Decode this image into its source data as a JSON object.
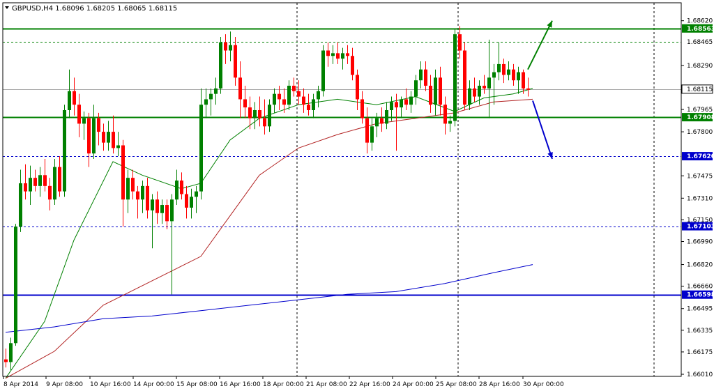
{
  "chart_data": {
    "type": "candlestick",
    "title": "GBPUSD,H4  1.68096 1.68205 1.68065 1.68115",
    "ylim": [
      1.6601,
      1.6867
    ],
    "y_ticks": [
      "1.68620",
      "1.68290",
      "1.67965",
      "1.67800",
      "1.67475",
      "1.67310",
      "1.67150",
      "1.66990",
      "1.66820",
      "1.66660",
      "1.66495",
      "1.66335",
      "1.66175",
      "1.66010"
    ],
    "x_ticks": [
      "8 Apr 2014",
      "9 Apr 08:00",
      "10 Apr 16:00",
      "14 Apr 00:00",
      "15 Apr 08:00",
      "16 Apr 16:00",
      "18 Apr 00:00",
      "21 Apr 08:00",
      "22 Apr 16:00",
      "24 Apr 00:00",
      "25 Apr 08:00",
      "28 Apr 16:00",
      "30 Apr 00:00"
    ],
    "horizontal_levels": [
      {
        "value": 1.68563,
        "label": "1.68563",
        "color": "#008000",
        "style": "solid",
        "highlight": true
      },
      {
        "value": 1.68465,
        "label": "1.68465",
        "color": "#008000",
        "style": "dashed",
        "highlight": false
      },
      {
        "value": 1.68115,
        "label": "1.68115",
        "color": "#000000",
        "style": "current",
        "highlight": false
      },
      {
        "value": 1.67908,
        "label": "1.67908",
        "color": "#008000",
        "style": "solid",
        "highlight": true
      },
      {
        "value": 1.6762,
        "label": "1.67620",
        "color": "#0000cc",
        "style": "dashed",
        "highlight": true
      },
      {
        "value": 1.67103,
        "label": "1.67103",
        "color": "#0000cc",
        "style": "dashed",
        "highlight": true
      },
      {
        "value": 1.66598,
        "label": "1.66598",
        "color": "#0000cc",
        "style": "solid",
        "highlight": true
      }
    ],
    "candles": [
      [
        1.6612,
        1.662,
        1.6606,
        1.661
      ],
      [
        1.661,
        1.6628,
        1.6604,
        1.6624
      ],
      [
        1.6624,
        1.6712,
        1.6622,
        1.671
      ],
      [
        1.671,
        1.6752,
        1.6706,
        1.6742
      ],
      [
        1.6742,
        1.6756,
        1.673,
        1.6736
      ],
      [
        1.6736,
        1.6755,
        1.6726,
        1.6746
      ],
      [
        1.6746,
        1.6752,
        1.6736,
        1.674
      ],
      [
        1.674,
        1.6754,
        1.6732,
        1.6748
      ],
      [
        1.6748,
        1.676,
        1.6736,
        1.674
      ],
      [
        1.674,
        1.6746,
        1.6722,
        1.673
      ],
      [
        1.673,
        1.676,
        1.6726,
        1.6754
      ],
      [
        1.6754,
        1.6762,
        1.6732,
        1.6736
      ],
      [
        1.6736,
        1.68,
        1.6732,
        1.6796
      ],
      [
        1.6796,
        1.6826,
        1.679,
        1.681
      ],
      [
        1.681,
        1.682,
        1.6792,
        1.68
      ],
      [
        1.68,
        1.6808,
        1.6776,
        1.6786
      ],
      [
        1.6786,
        1.6795,
        1.6774,
        1.679
      ],
      [
        1.679,
        1.6794,
        1.6754,
        1.6764
      ],
      [
        1.6764,
        1.68,
        1.676,
        1.679
      ],
      [
        1.679,
        1.6794,
        1.677,
        1.678
      ],
      [
        1.678,
        1.6786,
        1.6766,
        1.6772
      ],
      [
        1.6772,
        1.6788,
        1.6766,
        1.678
      ],
      [
        1.678,
        1.6792,
        1.6764,
        1.6768
      ],
      [
        1.6768,
        1.678,
        1.6762,
        1.677
      ],
      [
        1.677,
        1.6774,
        1.671,
        1.673
      ],
      [
        1.673,
        1.6752,
        1.672,
        1.6746
      ],
      [
        1.6746,
        1.6752,
        1.673,
        1.6736
      ],
      [
        1.6736,
        1.674,
        1.6716,
        1.673
      ],
      [
        1.673,
        1.6744,
        1.672,
        1.674
      ],
      [
        1.674,
        1.6746,
        1.6716,
        1.6722
      ],
      [
        1.6722,
        1.6734,
        1.6694,
        1.673
      ],
      [
        1.673,
        1.6736,
        1.6712,
        1.672
      ],
      [
        1.672,
        1.673,
        1.6712,
        1.6726
      ],
      [
        1.6726,
        1.673,
        1.6708,
        1.6714
      ],
      [
        1.6714,
        1.6734,
        1.666,
        1.673
      ],
      [
        1.673,
        1.6752,
        1.6726,
        1.6744
      ],
      [
        1.6744,
        1.675,
        1.673,
        1.6734
      ],
      [
        1.6734,
        1.674,
        1.6716,
        1.6724
      ],
      [
        1.6724,
        1.6738,
        1.6716,
        1.6732
      ],
      [
        1.6732,
        1.674,
        1.672,
        1.6736
      ],
      [
        1.6736,
        1.6812,
        1.673,
        1.68
      ],
      [
        1.68,
        1.6812,
        1.679,
        1.6804
      ],
      [
        1.6804,
        1.6812,
        1.6792,
        1.6808
      ],
      [
        1.6808,
        1.682,
        1.68,
        1.6812
      ],
      [
        1.6812,
        1.685,
        1.6808,
        1.6846
      ],
      [
        1.6846,
        1.6852,
        1.683,
        1.684
      ],
      [
        1.684,
        1.6854,
        1.6832,
        1.6844
      ],
      [
        1.6844,
        1.685,
        1.6814,
        1.682
      ],
      [
        1.682,
        1.6832,
        1.679,
        1.6804
      ],
      [
        1.6804,
        1.6814,
        1.679,
        1.6798
      ],
      [
        1.6798,
        1.6806,
        1.6782,
        1.679
      ],
      [
        1.679,
        1.6802,
        1.6782,
        1.6796
      ],
      [
        1.6796,
        1.6806,
        1.6784,
        1.679
      ],
      [
        1.679,
        1.6804,
        1.6778,
        1.6784
      ],
      [
        1.6784,
        1.6804,
        1.678,
        1.68
      ],
      [
        1.68,
        1.6812,
        1.6794,
        1.6808
      ],
      [
        1.6808,
        1.6814,
        1.6796,
        1.6804
      ],
      [
        1.6804,
        1.6812,
        1.6794,
        1.68
      ],
      [
        1.68,
        1.6818,
        1.6796,
        1.6814
      ],
      [
        1.6814,
        1.682,
        1.6806,
        1.681
      ],
      [
        1.681,
        1.6818,
        1.68,
        1.6806
      ],
      [
        1.6806,
        1.6812,
        1.6794,
        1.68
      ],
      [
        1.68,
        1.6808,
        1.6792,
        1.6796
      ],
      [
        1.6796,
        1.6808,
        1.679,
        1.6804
      ],
      [
        1.6804,
        1.6814,
        1.6798,
        1.681
      ],
      [
        1.681,
        1.6844,
        1.6806,
        1.684
      ],
      [
        1.684,
        1.6846,
        1.6828,
        1.6836
      ],
      [
        1.6836,
        1.6844,
        1.683,
        1.6838
      ],
      [
        1.6838,
        1.6846,
        1.683,
        1.6834
      ],
      [
        1.6834,
        1.6842,
        1.6826,
        1.6838
      ],
      [
        1.6838,
        1.6844,
        1.683,
        1.6836
      ],
      [
        1.6836,
        1.6842,
        1.6818,
        1.6822
      ],
      [
        1.6822,
        1.6826,
        1.6796,
        1.6804
      ],
      [
        1.6804,
        1.681,
        1.6786,
        1.679
      ],
      [
        1.679,
        1.6798,
        1.6764,
        1.6772
      ],
      [
        1.6772,
        1.679,
        1.6766,
        1.6784
      ],
      [
        1.6784,
        1.6794,
        1.6776,
        1.679
      ],
      [
        1.679,
        1.6798,
        1.678,
        1.6786
      ],
      [
        1.6786,
        1.6802,
        1.6782,
        1.6796
      ],
      [
        1.6796,
        1.6806,
        1.6788,
        1.6802
      ],
      [
        1.6802,
        1.6808,
        1.6766,
        1.6798
      ],
      [
        1.6798,
        1.6806,
        1.679,
        1.6804
      ],
      [
        1.6804,
        1.6812,
        1.6796,
        1.68
      ],
      [
        1.68,
        1.681,
        1.6794,
        1.6806
      ],
      [
        1.6806,
        1.6822,
        1.68,
        1.6818
      ],
      [
        1.6818,
        1.6832,
        1.6812,
        1.6826
      ],
      [
        1.6826,
        1.6832,
        1.681,
        1.6814
      ],
      [
        1.6814,
        1.6822,
        1.6794,
        1.68
      ],
      [
        1.68,
        1.6826,
        1.6792,
        1.682
      ],
      [
        1.682,
        1.6828,
        1.6792,
        1.68
      ],
      [
        1.68,
        1.6806,
        1.6778,
        1.6786
      ],
      [
        1.6786,
        1.6792,
        1.678,
        1.6788
      ],
      [
        1.6788,
        1.6856,
        1.6784,
        1.6852
      ],
      [
        1.6852,
        1.6858,
        1.6834,
        1.684
      ],
      [
        1.684,
        1.6846,
        1.6796,
        1.68
      ],
      [
        1.68,
        1.6818,
        1.6796,
        1.6812
      ],
      [
        1.6812,
        1.682,
        1.6802,
        1.6806
      ],
      [
        1.6806,
        1.6818,
        1.68,
        1.6814
      ],
      [
        1.6814,
        1.6822,
        1.6808,
        1.6812
      ],
      [
        1.6812,
        1.6848,
        1.679,
        1.682
      ],
      [
        1.682,
        1.683,
        1.68,
        1.6824
      ],
      [
        1.6824,
        1.6846,
        1.6818,
        1.683
      ],
      [
        1.683,
        1.6834,
        1.6816,
        1.6822
      ],
      [
        1.6822,
        1.6832,
        1.6818,
        1.6826
      ],
      [
        1.6826,
        1.683,
        1.6814,
        1.6818
      ],
      [
        1.6818,
        1.6828,
        1.6808,
        1.6824
      ],
      [
        1.6824,
        1.6826,
        1.6808,
        1.6812
      ],
      [
        1.6812,
        1.682,
        1.6806,
        1.6811
      ]
    ],
    "ma_series": [
      {
        "color": "#008000",
        "values": [
          [
            0,
            1.6598
          ],
          [
            8,
            1.664
          ],
          [
            14,
            1.67
          ],
          [
            22,
            1.6758
          ],
          [
            28,
            1.6748
          ],
          [
            36,
            1.6738
          ],
          [
            40,
            1.6742
          ],
          [
            46,
            1.6774
          ],
          [
            52,
            1.679
          ],
          [
            60,
            1.68
          ],
          [
            68,
            1.6804
          ],
          [
            76,
            1.68
          ],
          [
            84,
            1.6806
          ],
          [
            92,
            1.6795
          ],
          [
            98,
            1.6805
          ],
          [
            104,
            1.6808
          ],
          [
            108,
            1.6812
          ]
        ]
      },
      {
        "color": "#b22222",
        "values": [
          [
            0,
            1.6598
          ],
          [
            10,
            1.6618
          ],
          [
            20,
            1.6652
          ],
          [
            30,
            1.667
          ],
          [
            40,
            1.6688
          ],
          [
            46,
            1.6718
          ],
          [
            52,
            1.6748
          ],
          [
            60,
            1.6768
          ],
          [
            68,
            1.6778
          ],
          [
            76,
            1.6786
          ],
          [
            84,
            1.679
          ],
          [
            92,
            1.6794
          ],
          [
            100,
            1.6802
          ],
          [
            108,
            1.6804
          ]
        ]
      },
      {
        "color": "#0000cc",
        "values": [
          [
            0,
            1.6632
          ],
          [
            10,
            1.6636
          ],
          [
            20,
            1.6642
          ],
          [
            30,
            1.6644
          ],
          [
            40,
            1.6648
          ],
          [
            50,
            1.6652
          ],
          [
            60,
            1.6656
          ],
          [
            70,
            1.666
          ],
          [
            80,
            1.6662
          ],
          [
            90,
            1.6668
          ],
          [
            100,
            1.6676
          ],
          [
            108,
            1.6682
          ]
        ]
      }
    ],
    "arrows": [
      {
        "from": [
          1.6826,
          107
        ],
        "to": [
          1.6862,
          112
        ],
        "color": "#008000"
      },
      {
        "from": [
          1.6803,
          108
        ],
        "to": [
          1.676,
          112
        ],
        "color": "#0000cc"
      }
    ],
    "grid": true,
    "colors": {
      "bull": "#008000",
      "bear": "#ff0000"
    }
  }
}
